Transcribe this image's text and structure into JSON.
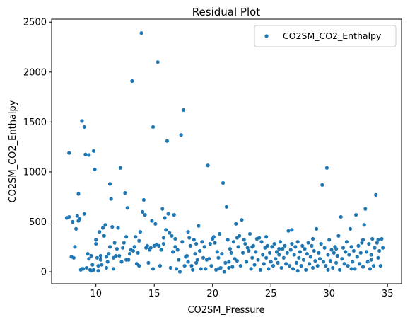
{
  "chart_data": {
    "type": "scatter",
    "title": "Residual Plot",
    "xlabel": "CO2SM_Pressure",
    "ylabel": "CO2SM_CO2_Enthalpy",
    "xlim": [
      6.2,
      36.2
    ],
    "ylim": [
      -120,
      2530
    ],
    "xticks": [
      10,
      15,
      20,
      25,
      30,
      35
    ],
    "yticks": [
      0,
      500,
      1000,
      1500,
      2000,
      2500
    ],
    "legend_position": "top-right",
    "grid": false,
    "series": [
      {
        "name": "CO2SM_CO2_Enthalpy",
        "color": "#1f77b4",
        "points": [
          [
            7.5,
            540
          ],
          [
            7.7,
            550
          ],
          [
            7.7,
            1190
          ],
          [
            7.9,
            150
          ],
          [
            8.0,
            500
          ],
          [
            8.1,
            140
          ],
          [
            8.2,
            250
          ],
          [
            8.3,
            430
          ],
          [
            8.4,
            560
          ],
          [
            8.5,
            780
          ],
          [
            8.5,
            510
          ],
          [
            8.6,
            530
          ],
          [
            8.7,
            20
          ],
          [
            8.8,
            30
          ],
          [
            8.8,
            1510
          ],
          [
            9.0,
            1450
          ],
          [
            9.0,
            580
          ],
          [
            9.1,
            1175
          ],
          [
            9.2,
            40
          ],
          [
            9.3,
            180
          ],
          [
            9.4,
            1170
          ],
          [
            9.4,
            130
          ],
          [
            9.5,
            20
          ],
          [
            9.6,
            160
          ],
          [
            9.7,
            70
          ],
          [
            9.8,
            20
          ],
          [
            9.8,
            1210
          ],
          [
            9.9,
            1025
          ],
          [
            10.0,
            280
          ],
          [
            10.0,
            320
          ],
          [
            10.1,
            140
          ],
          [
            10.2,
            60
          ],
          [
            10.2,
            10
          ],
          [
            10.3,
            400
          ],
          [
            10.4,
            160
          ],
          [
            10.5,
            70
          ],
          [
            10.6,
            440
          ],
          [
            10.7,
            360
          ],
          [
            10.8,
            470
          ],
          [
            10.9,
            150
          ],
          [
            11.0,
            100
          ],
          [
            11.1,
            180
          ],
          [
            11.2,
            250
          ],
          [
            11.2,
            880
          ],
          [
            11.3,
            730
          ],
          [
            11.4,
            450
          ],
          [
            11.5,
            140
          ],
          [
            11.6,
            290
          ],
          [
            11.7,
            160
          ],
          [
            11.8,
            230
          ],
          [
            11.9,
            440
          ],
          [
            12.0,
            160
          ],
          [
            12.1,
            1040
          ],
          [
            12.2,
            100
          ],
          [
            12.3,
            240
          ],
          [
            12.4,
            290
          ],
          [
            12.5,
            790
          ],
          [
            12.6,
            350
          ],
          [
            12.7,
            640
          ],
          [
            12.8,
            120
          ],
          [
            12.9,
            180
          ],
          [
            13.0,
            220
          ],
          [
            13.1,
            1910
          ],
          [
            13.2,
            210
          ],
          [
            13.3,
            250
          ],
          [
            13.4,
            350
          ],
          [
            13.5,
            80
          ],
          [
            13.6,
            190
          ],
          [
            13.7,
            310
          ],
          [
            13.8,
            400
          ],
          [
            13.9,
            2390
          ],
          [
            14.0,
            600
          ],
          [
            14.1,
            720
          ],
          [
            14.2,
            570
          ],
          [
            14.3,
            240
          ],
          [
            14.4,
            260
          ],
          [
            14.5,
            90
          ],
          [
            14.6,
            220
          ],
          [
            14.7,
            240
          ],
          [
            14.8,
            510
          ],
          [
            14.9,
            1450
          ],
          [
            15.0,
            260
          ],
          [
            15.1,
            480
          ],
          [
            15.2,
            270
          ],
          [
            15.3,
            2100
          ],
          [
            15.4,
            260
          ],
          [
            15.5,
            60
          ],
          [
            15.6,
            220
          ],
          [
            15.7,
            630
          ],
          [
            15.8,
            340
          ],
          [
            15.9,
            540
          ],
          [
            16.0,
            420
          ],
          [
            16.1,
            1310
          ],
          [
            16.2,
            580
          ],
          [
            16.3,
            390
          ],
          [
            16.4,
            40
          ],
          [
            16.5,
            360
          ],
          [
            16.6,
            200
          ],
          [
            16.7,
            570
          ],
          [
            16.8,
            330
          ],
          [
            16.9,
            30
          ],
          [
            17.0,
            220
          ],
          [
            17.1,
            120
          ],
          [
            17.2,
            0
          ],
          [
            17.3,
            1370
          ],
          [
            17.4,
            300
          ],
          [
            17.5,
            1620
          ],
          [
            17.6,
            60
          ],
          [
            17.7,
            150
          ],
          [
            17.8,
            160
          ],
          [
            17.9,
            100
          ],
          [
            18.0,
            340
          ],
          [
            18.1,
            260
          ],
          [
            18.2,
            60
          ],
          [
            18.3,
            20
          ],
          [
            18.4,
            320
          ],
          [
            18.5,
            180
          ],
          [
            18.6,
            280
          ],
          [
            18.7,
            120
          ],
          [
            18.8,
            460
          ],
          [
            18.9,
            210
          ],
          [
            19.0,
            30
          ],
          [
            19.1,
            300
          ],
          [
            19.2,
            140
          ],
          [
            19.3,
            250
          ],
          [
            19.5,
            120
          ],
          [
            19.6,
            1065
          ],
          [
            19.7,
            130
          ],
          [
            19.8,
            280
          ],
          [
            19.9,
            60
          ],
          [
            20.0,
            330
          ],
          [
            20.1,
            350
          ],
          [
            20.2,
            290
          ],
          [
            20.3,
            20
          ],
          [
            20.4,
            200
          ],
          [
            20.5,
            140
          ],
          [
            20.6,
            380
          ],
          [
            20.7,
            40
          ],
          [
            20.8,
            180
          ],
          [
            20.9,
            890
          ],
          [
            21.0,
            0
          ],
          [
            21.1,
            90
          ],
          [
            21.2,
            650
          ],
          [
            21.3,
            320
          ],
          [
            21.4,
            40
          ],
          [
            21.5,
            230
          ],
          [
            21.6,
            190
          ],
          [
            21.7,
            50
          ],
          [
            21.8,
            300
          ],
          [
            21.9,
            130
          ],
          [
            22.0,
            480
          ],
          [
            22.1,
            340
          ],
          [
            22.2,
            250
          ],
          [
            22.3,
            360
          ],
          [
            22.4,
            60
          ],
          [
            22.5,
            520
          ],
          [
            22.6,
            190
          ],
          [
            22.7,
            320
          ],
          [
            22.8,
            280
          ],
          [
            22.9,
            100
          ],
          [
            23.0,
            240
          ],
          [
            23.1,
            210
          ],
          [
            23.2,
            380
          ],
          [
            23.3,
            30
          ],
          [
            23.4,
            140
          ],
          [
            23.5,
            260
          ],
          [
            23.6,
            70
          ],
          [
            23.7,
            200
          ],
          [
            23.8,
            330
          ],
          [
            23.9,
            120
          ],
          [
            24.0,
            340
          ],
          [
            24.1,
            20
          ],
          [
            24.2,
            300
          ],
          [
            24.3,
            170
          ],
          [
            24.4,
            80
          ],
          [
            24.5,
            240
          ],
          [
            24.6,
            140
          ],
          [
            24.7,
            260
          ],
          [
            24.8,
            30
          ],
          [
            24.9,
            190
          ],
          [
            25.0,
            100
          ],
          [
            25.1,
            250
          ],
          [
            25.2,
            60
          ],
          [
            25.3,
            280
          ],
          [
            25.4,
            130
          ],
          [
            25.5,
            200
          ],
          [
            25.6,
            90
          ],
          [
            25.7,
            170
          ],
          [
            25.8,
            300
          ],
          [
            25.9,
            40
          ],
          [
            26.0,
            230
          ],
          [
            26.1,
            140
          ],
          [
            26.2,
            260
          ],
          [
            26.3,
            80
          ],
          [
            26.4,
            190
          ],
          [
            26.5,
            410
          ],
          [
            26.6,
            60
          ],
          [
            26.7,
            220
          ],
          [
            26.8,
            280
          ],
          [
            26.9,
            30
          ],
          [
            27.0,
            170
          ],
          [
            27.1,
            250
          ],
          [
            27.2,
            90
          ],
          [
            27.3,
            300
          ],
          [
            27.4,
            140
          ],
          [
            27.5,
            200
          ],
          [
            27.6,
            60
          ],
          [
            27.7,
            260
          ],
          [
            27.8,
            120
          ],
          [
            27.9,
            230
          ],
          [
            28.0,
            20
          ],
          [
            28.1,
            180
          ],
          [
            28.2,
            290
          ],
          [
            28.3,
            80
          ],
          [
            28.4,
            150
          ],
          [
            28.5,
            260
          ],
          [
            28.6,
            40
          ],
          [
            28.7,
            210
          ],
          [
            28.8,
            110
          ],
          [
            28.9,
            430
          ],
          [
            29.0,
            60
          ],
          [
            29.1,
            190
          ],
          [
            29.2,
            130
          ],
          [
            29.3,
            280
          ],
          [
            29.4,
            870
          ],
          [
            29.5,
            100
          ],
          [
            29.6,
            240
          ],
          [
            29.7,
            60
          ],
          [
            29.8,
            1040
          ],
          [
            29.9,
            170
          ],
          [
            30.0,
            320
          ],
          [
            30.1,
            110
          ],
          [
            30.2,
            220
          ],
          [
            30.3,
            40
          ],
          [
            30.4,
            190
          ],
          [
            30.5,
            250
          ],
          [
            30.6,
            90
          ],
          [
            30.7,
            160
          ],
          [
            30.8,
            360
          ],
          [
            30.9,
            20
          ],
          [
            31.0,
            550
          ],
          [
            31.1,
            130
          ],
          [
            31.2,
            240
          ],
          [
            31.3,
            80
          ],
          [
            31.4,
            200
          ],
          [
            31.5,
            300
          ],
          [
            31.6,
            60
          ],
          [
            31.7,
            170
          ],
          [
            31.8,
            430
          ],
          [
            31.9,
            250
          ],
          [
            32.0,
            100
          ],
          [
            32.1,
            210
          ],
          [
            32.2,
            30
          ],
          [
            32.3,
            570
          ],
          [
            32.4,
            150
          ],
          [
            32.5,
            260
          ],
          [
            32.6,
            80
          ],
          [
            32.7,
            190
          ],
          [
            32.8,
            290
          ],
          [
            32.9,
            50
          ],
          [
            33.0,
            470
          ],
          [
            33.1,
            630
          ],
          [
            33.2,
            200
          ],
          [
            33.3,
            100
          ],
          [
            33.4,
            280
          ],
          [
            33.5,
            30
          ],
          [
            33.6,
            170
          ],
          [
            33.7,
            330
          ],
          [
            33.8,
            60
          ],
          [
            33.9,
            240
          ],
          [
            34.0,
            770
          ],
          [
            34.1,
            290
          ],
          [
            34.2,
            140
          ],
          [
            34.3,
            210
          ],
          [
            34.4,
            60
          ],
          [
            34.5,
            330
          ],
          [
            34.6,
            240
          ],
          [
            34.2,
            320
          ],
          [
            33.6,
            120
          ],
          [
            32.9,
            320
          ],
          [
            31.9,
            30
          ],
          [
            30.6,
            230
          ],
          [
            29.9,
            20
          ],
          [
            28.6,
            330
          ],
          [
            27.3,
            10
          ],
          [
            26.8,
            420
          ],
          [
            25.7,
            230
          ],
          [
            24.6,
            350
          ],
          [
            23.4,
            250
          ],
          [
            22.1,
            110
          ],
          [
            21.4,
            100
          ],
          [
            20.5,
            30
          ],
          [
            19.4,
            30
          ],
          [
            18.6,
            90
          ],
          [
            17.9,
            400
          ],
          [
            16.8,
            250
          ],
          [
            15.8,
            280
          ],
          [
            14.9,
            30
          ],
          [
            13.7,
            60
          ],
          [
            12.6,
            120
          ],
          [
            11.5,
            30
          ],
          [
            10.9,
            40
          ],
          [
            10.4,
            120
          ],
          [
            9.6,
            10
          ],
          [
            8.9,
            30
          ]
        ]
      }
    ]
  }
}
